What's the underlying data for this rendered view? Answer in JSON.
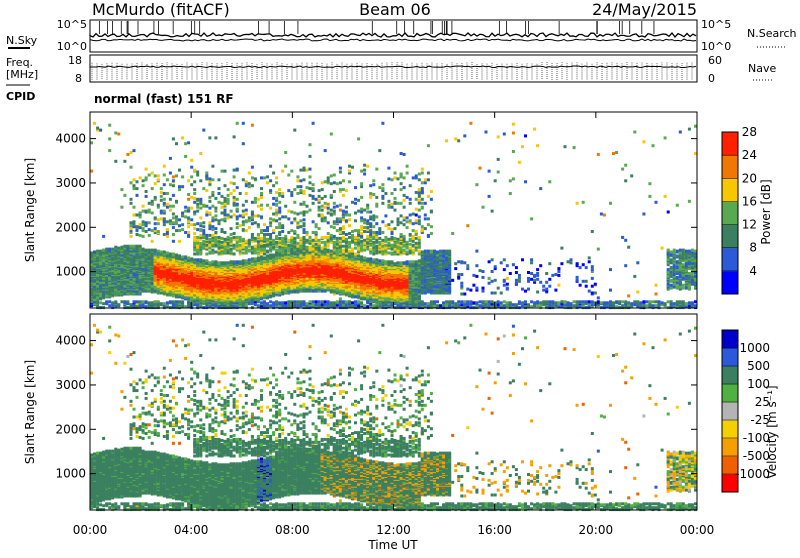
{
  "header": {
    "station": "McMurdo (fitACF)",
    "beam": "Beam 06",
    "date": "24/May/2015"
  },
  "status_panel": {
    "left_top": "N.Sky",
    "left_mid_line1": "Freq.",
    "left_mid_line2": "[MHz]",
    "left_bottom": "CPID",
    "right_top": "N.Search",
    "right_mid": "Nave",
    "nsky_ticks": [
      "10^5",
      "10^0"
    ],
    "freq_ticks": [
      "18",
      "8"
    ],
    "nave_ticks": [
      "60",
      "0"
    ],
    "nsearch_ticks": [
      "10^5",
      "10^0"
    ],
    "cpid_text": "normal (fast) 151 RF"
  },
  "chart_data": [
    {
      "type": "heatmap",
      "quantity": "Power",
      "ylabel": "Slant Range [km]",
      "ylim": [
        180,
        4600
      ],
      "yticks": [
        "1000",
        "2000",
        "3000",
        "4000"
      ],
      "colorbar_label": "Power [dB]",
      "colorbar_ticks": [
        "4",
        "8",
        "12",
        "16",
        "20",
        "24",
        "28"
      ],
      "colors": [
        "#0000ff",
        "#2b5ad8",
        "#3a8060",
        "#5aa850",
        "#f5c800",
        "#f07800",
        "#ff2000"
      ]
    },
    {
      "type": "heatmap",
      "quantity": "Velocity",
      "ylabel": "Slant Range [km]",
      "xlabel": "Time UT",
      "ylim": [
        180,
        4600
      ],
      "xlim": [
        "00:00",
        "24:00"
      ],
      "yticks": [
        "1000",
        "2000",
        "3000",
        "4000"
      ],
      "xticks": [
        "00:00",
        "04:00",
        "08:00",
        "12:00",
        "16:00",
        "20:00",
        "00:00"
      ],
      "colorbar_label": "Velocity [m s⁻¹]",
      "colorbar_ticks": [
        "-1000",
        "-500",
        "-100",
        "-25",
        "25",
        "100",
        "500",
        "1000"
      ],
      "colors": [
        "#ff0000",
        "#f06000",
        "#f5a000",
        "#f5d000",
        "#b4b4b4",
        "#50b040",
        "#3a8060",
        "#2b5ad8",
        "#0000c8"
      ]
    }
  ]
}
